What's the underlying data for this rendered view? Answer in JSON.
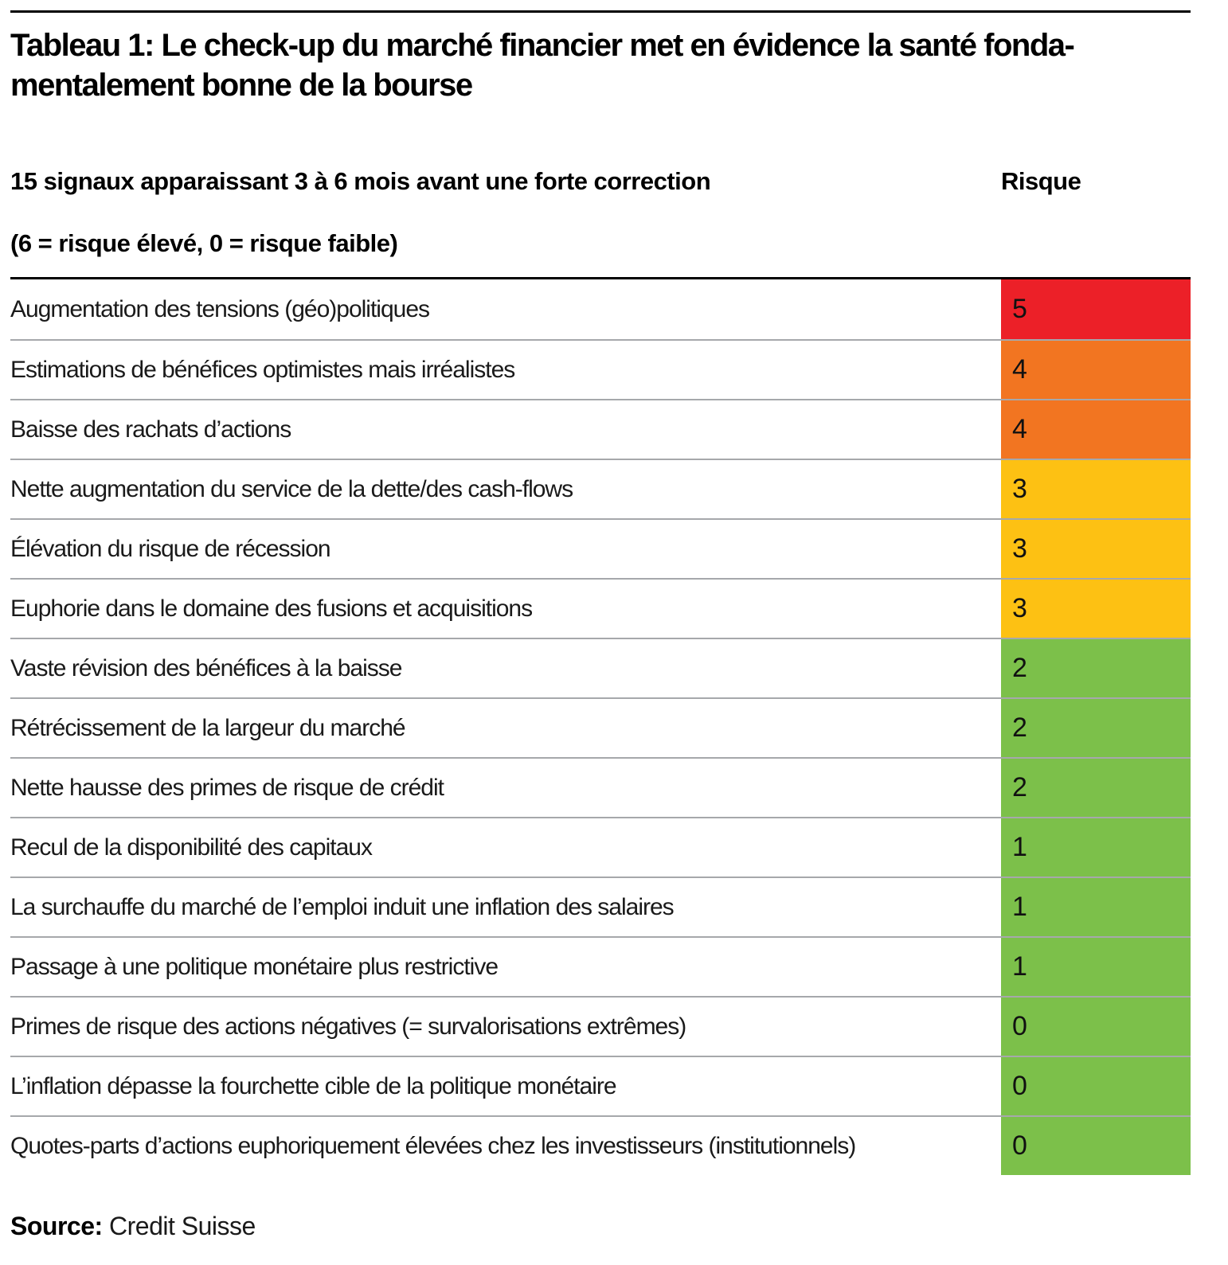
{
  "title": {
    "full": "Tableau 1: Le check-up du marché financier met en évidence la santé fondamentalement bonne de la bourse",
    "lines": [
      "Tableau 1: Le check-up du marché financier met en évidence la santé fonda-",
      "mentalement bonne de la bourse"
    ]
  },
  "header": {
    "signals": "15 signaux apparaissant 3 à 6 mois avant une forte correction",
    "risk": "Risque",
    "scale_note": "(6 = risque élevé, 0 = risque faible)"
  },
  "source": {
    "label": "Source:",
    "value": "Credit Suisse"
  },
  "colors": {
    "rule_black": "#000000",
    "row_separator": "#a6a8ab",
    "risk_red": "#ec2028",
    "risk_orange": "#f27521",
    "risk_yellow": "#fdc113",
    "risk_green": "#7cc04a"
  },
  "chart_data": {
    "type": "table",
    "title": "Tableau 1: Le check-up du marché financier met en évidence la santé fondamentalement bonne de la bourse",
    "columns": [
      "15 signaux apparaissant 3 à 6 mois avant une forte correction",
      "Risque"
    ],
    "risk_scale": {
      "min": 0,
      "max": 6,
      "note": "(6 = risque élevé, 0 = risque faible)"
    },
    "color_scale": {
      "red": "#ec2028",
      "orange": "#f27521",
      "yellow": "#fdc113",
      "green": "#7cc04a"
    },
    "rows": [
      {
        "signal": "Augmentation des tensions (géo)politiques",
        "risk": 5,
        "color": "red"
      },
      {
        "signal": "Estimations de bénéfices optimistes mais irréalistes",
        "risk": 4,
        "color": "orange"
      },
      {
        "signal": "Baisse des rachats d’actions",
        "risk": 4,
        "color": "orange"
      },
      {
        "signal": "Nette augmentation du service de la dette/des cash-flows",
        "risk": 3,
        "color": "yellow"
      },
      {
        "signal": "Élévation du risque de récession",
        "risk": 3,
        "color": "yellow"
      },
      {
        "signal": "Euphorie dans le domaine des fusions et acquisitions",
        "risk": 3,
        "color": "yellow"
      },
      {
        "signal": "Vaste révision des bénéfices à la baisse",
        "risk": 2,
        "color": "green"
      },
      {
        "signal": "Rétrécissement de la largeur du marché",
        "risk": 2,
        "color": "green"
      },
      {
        "signal": "Nette hausse des primes de risque de crédit",
        "risk": 2,
        "color": "green"
      },
      {
        "signal": "Recul de la disponibilité des capitaux",
        "risk": 1,
        "color": "green"
      },
      {
        "signal": "La surchauffe du marché de l’emploi induit une inflation des salaires",
        "risk": 1,
        "color": "green"
      },
      {
        "signal": "Passage à une politique monétaire plus restrictive",
        "risk": 1,
        "color": "green"
      },
      {
        "signal": "Primes de risque des actions négatives (= survalorisations extrêmes)",
        "risk": 0,
        "color": "green"
      },
      {
        "signal": "L’inflation dépasse la fourchette cible de la politique monétaire",
        "risk": 0,
        "color": "green"
      },
      {
        "signal": "Quotes-parts d’actions euphoriquement élevées chez les investisseurs (institutionnels)",
        "risk": 0,
        "color": "green"
      }
    ]
  }
}
